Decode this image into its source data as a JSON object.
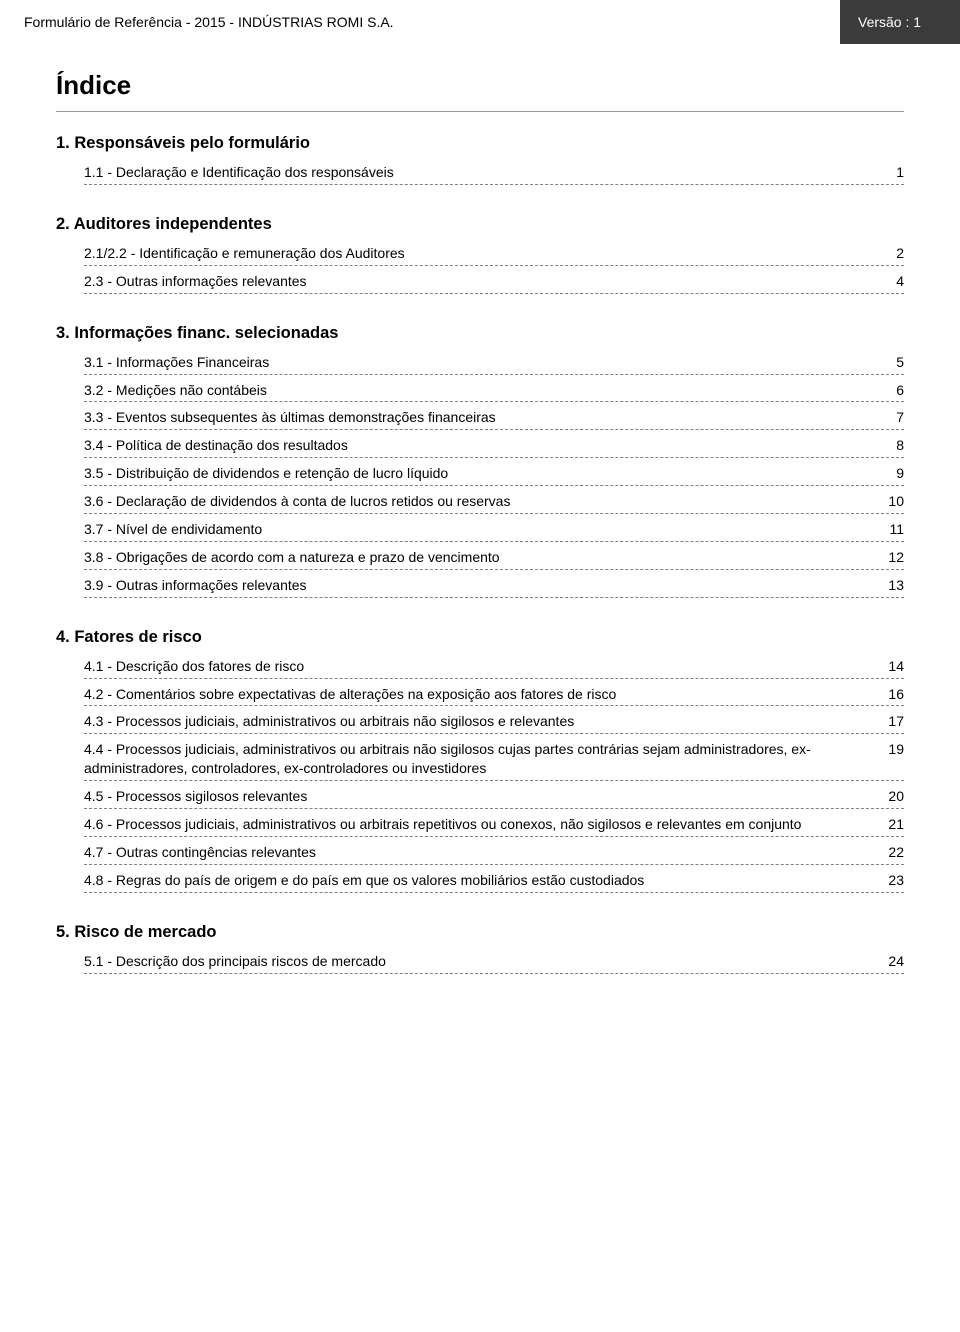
{
  "header": {
    "doc_title": "Formulário de Referência - 2015 - INDÚSTRIAS ROMI S.A.",
    "version_label": "Versão : 1"
  },
  "title": "Índice",
  "colors": {
    "text": "#000000",
    "background": "#ffffff",
    "version_bg": "#3b3b3b",
    "version_text": "#ffffff",
    "rule": "#9a9a9a",
    "dash": "#808080"
  },
  "typography": {
    "body_fontsize_pt": 10.5,
    "title_fontsize_pt": 20,
    "section_fontsize_pt": 12.5,
    "font_family": "Arial"
  },
  "sections": [
    {
      "heading": "1. Responsáveis pelo formulário",
      "items": [
        {
          "label": "1.1 - Declaração e Identificação dos responsáveis",
          "page": "1"
        }
      ]
    },
    {
      "heading": "2. Auditores independentes",
      "items": [
        {
          "label": "2.1/2.2 - Identificação e remuneração dos Auditores",
          "page": "2"
        },
        {
          "label": "2.3 - Outras informações relevantes",
          "page": "4"
        }
      ]
    },
    {
      "heading": "3. Informações financ. selecionadas",
      "items": [
        {
          "label": "3.1 - Informações Financeiras",
          "page": "5"
        },
        {
          "label": "3.2 - Medições não contábeis",
          "page": "6"
        },
        {
          "label": "3.3 - Eventos subsequentes às últimas demonstrações financeiras",
          "page": "7"
        },
        {
          "label": "3.4 - Política de destinação dos resultados",
          "page": "8"
        },
        {
          "label": "3.5 - Distribuição de dividendos e retenção de lucro líquido",
          "page": "9"
        },
        {
          "label": "3.6 - Declaração de dividendos à conta de lucros retidos ou reservas",
          "page": "10"
        },
        {
          "label": "3.7 - Nível de endividamento",
          "page": "11"
        },
        {
          "label": "3.8 - Obrigações de acordo com a natureza e prazo de vencimento",
          "page": "12"
        },
        {
          "label": "3.9 - Outras informações relevantes",
          "page": "13"
        }
      ]
    },
    {
      "heading": "4. Fatores de risco",
      "items": [
        {
          "label": "4.1 - Descrição dos fatores de risco",
          "page": "14"
        },
        {
          "label": "4.2 - Comentários sobre expectativas de alterações na exposição aos fatores de risco",
          "page": "16"
        },
        {
          "label": "4.3 - Processos judiciais, administrativos ou arbitrais não sigilosos e relevantes",
          "page": "17"
        },
        {
          "label": "4.4 - Processos judiciais, administrativos ou arbitrais não sigilosos cujas partes contrárias sejam administradores, ex-administradores, controladores, ex-controladores ou investidores",
          "page": "19"
        },
        {
          "label": "4.5 - Processos sigilosos relevantes",
          "page": "20"
        },
        {
          "label": "4.6 - Processos judiciais, administrativos ou arbitrais repetitivos ou conexos, não sigilosos e relevantes em conjunto",
          "page": "21"
        },
        {
          "label": "4.7 - Outras contingências relevantes",
          "page": "22"
        },
        {
          "label": "4.8 - Regras do país de origem e  do país em que os valores mobiliários estão custodiados",
          "page": "23"
        }
      ]
    },
    {
      "heading": "5. Risco de mercado",
      "items": [
        {
          "label": "5.1 - Descrição dos principais riscos de mercado",
          "page": "24"
        }
      ]
    }
  ]
}
